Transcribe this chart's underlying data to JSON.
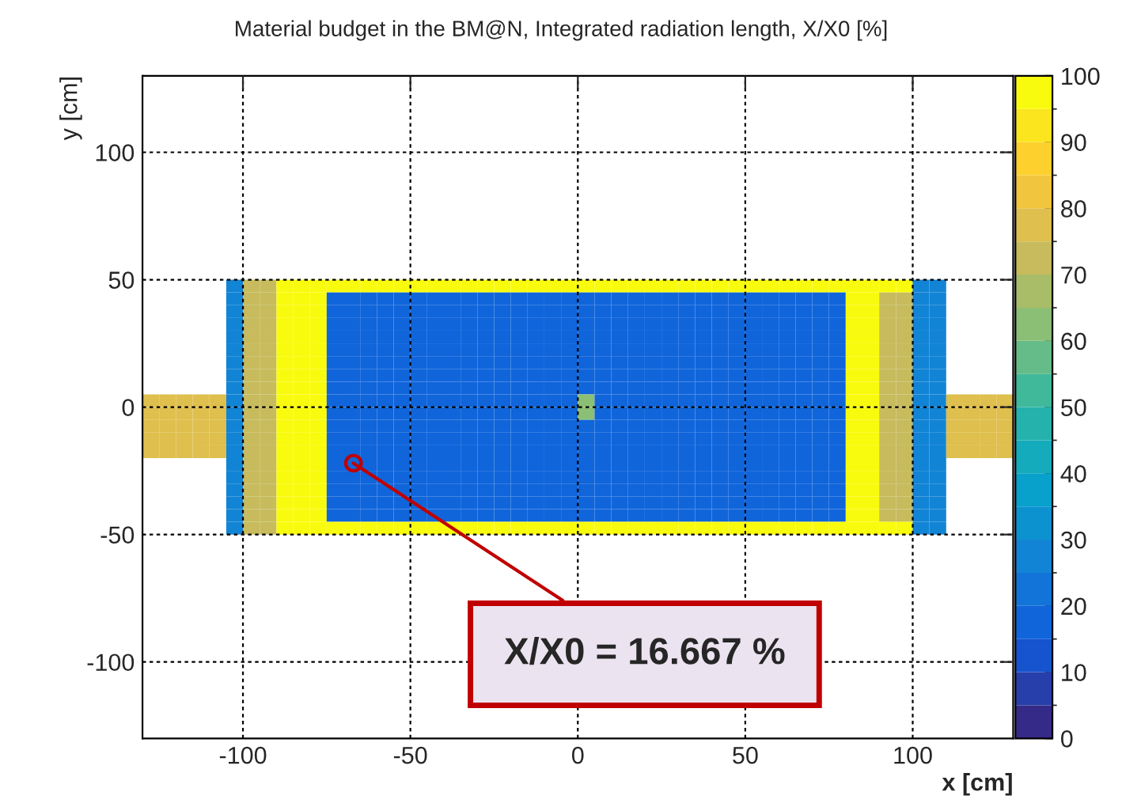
{
  "chart_data": {
    "type": "heatmap",
    "title": "Material budget in the BM@N, Integrated radiation length, X/X0 [%]",
    "xlabel": "x [cm]",
    "ylabel": "y [cm]",
    "x": [
      -127.5,
      -122.5,
      -117.5,
      -112.5,
      -107.5,
      -102.5,
      -97.5,
      -92.5,
      -87.5,
      -82.5,
      -77.5,
      -72.5,
      -67.5,
      -62.5,
      -57.5,
      -52.5,
      -47.5,
      -42.5,
      -37.5,
      -32.5,
      -27.5,
      -22.5,
      -17.5,
      -12.5,
      -7.5,
      -2.5,
      2.5,
      7.5,
      12.5,
      17.5,
      22.5,
      27.5,
      32.5,
      37.5,
      42.5,
      47.5,
      52.5,
      57.5,
      62.5,
      67.5,
      72.5,
      77.5,
      82.5,
      87.5,
      92.5,
      97.5,
      102.5,
      107.5,
      112.5,
      117.5,
      122.5,
      127.5
    ],
    "y": [
      47.5,
      42.5,
      37.5,
      32.5,
      27.5,
      22.5,
      17.5,
      12.5,
      7.5,
      2.5,
      -2.5,
      -7.5,
      -12.5,
      -17.5,
      -22.5,
      -27.5,
      -32.5,
      -37.5,
      -42.5,
      -47.5
    ],
    "cells": [
      [
        null,
        null,
        null,
        null,
        null,
        25,
        70,
        70,
        95,
        95,
        95,
        95,
        95,
        95,
        95,
        95,
        95,
        95,
        95,
        95,
        95,
        95,
        95,
        95,
        95,
        95,
        95,
        95,
        95,
        95,
        95,
        95,
        95,
        95,
        95,
        95,
        95,
        95,
        95,
        95,
        95,
        95,
        95,
        95,
        95,
        95,
        25,
        25,
        null,
        null,
        null,
        null
      ],
      [
        null,
        null,
        null,
        null,
        null,
        25,
        70,
        70,
        95,
        95,
        95,
        16.667,
        16.667,
        16.667,
        16.667,
        16.667,
        16.667,
        16.667,
        16.667,
        16.667,
        16.667,
        16.667,
        16.667,
        16.667,
        16.667,
        16.667,
        16.667,
        16.667,
        16.667,
        16.667,
        16.667,
        16.667,
        16.667,
        16.667,
        16.667,
        16.667,
        16.667,
        16.667,
        16.667,
        16.667,
        16.667,
        16.667,
        95,
        95,
        70,
        70,
        25,
        25,
        null,
        null,
        null,
        null
      ],
      [
        null,
        null,
        null,
        null,
        null,
        25,
        70,
        70,
        95,
        95,
        95,
        16.667,
        16.667,
        16.667,
        16.667,
        16.667,
        16.667,
        16.667,
        16.667,
        16.667,
        16.667,
        16.667,
        16.667,
        16.667,
        16.667,
        16.667,
        16.667,
        16.667,
        16.667,
        16.667,
        16.667,
        16.667,
        16.667,
        16.667,
        16.667,
        16.667,
        16.667,
        16.667,
        16.667,
        16.667,
        16.667,
        16.667,
        95,
        95,
        70,
        70,
        25,
        25,
        null,
        null,
        null,
        null
      ],
      [
        null,
        null,
        null,
        null,
        null,
        25,
        70,
        70,
        95,
        95,
        95,
        16.667,
        16.667,
        16.667,
        16.667,
        16.667,
        16.667,
        16.667,
        16.667,
        16.667,
        16.667,
        16.667,
        16.667,
        16.667,
        16.667,
        16.667,
        16.667,
        16.667,
        16.667,
        16.667,
        16.667,
        16.667,
        16.667,
        16.667,
        16.667,
        16.667,
        16.667,
        16.667,
        16.667,
        16.667,
        16.667,
        16.667,
        95,
        95,
        70,
        70,
        25,
        25,
        null,
        null,
        null,
        null
      ],
      [
        null,
        null,
        null,
        null,
        null,
        25,
        70,
        70,
        95,
        95,
        95,
        16.667,
        16.667,
        16.667,
        16.667,
        16.667,
        16.667,
        16.667,
        16.667,
        16.667,
        16.667,
        16.667,
        16.667,
        16.667,
        16.667,
        16.667,
        16.667,
        16.667,
        16.667,
        16.667,
        16.667,
        16.667,
        16.667,
        16.667,
        16.667,
        16.667,
        16.667,
        16.667,
        16.667,
        16.667,
        16.667,
        16.667,
        95,
        95,
        70,
        70,
        25,
        25,
        null,
        null,
        null,
        null
      ],
      [
        null,
        null,
        null,
        null,
        null,
        25,
        70,
        70,
        95,
        95,
        95,
        16.667,
        16.667,
        16.667,
        16.667,
        16.667,
        16.667,
        16.667,
        16.667,
        16.667,
        16.667,
        16.667,
        16.667,
        16.667,
        16.667,
        16.667,
        16.667,
        16.667,
        16.667,
        16.667,
        16.667,
        16.667,
        16.667,
        16.667,
        16.667,
        16.667,
        16.667,
        16.667,
        16.667,
        16.667,
        16.667,
        16.667,
        95,
        95,
        70,
        70,
        25,
        25,
        null,
        null,
        null,
        null
      ],
      [
        null,
        null,
        null,
        null,
        null,
        25,
        70,
        70,
        95,
        95,
        95,
        16.667,
        16.667,
        16.667,
        16.667,
        16.667,
        16.667,
        16.667,
        16.667,
        16.667,
        16.667,
        16.667,
        16.667,
        16.667,
        16.667,
        16.667,
        16.667,
        16.667,
        16.667,
        16.667,
        16.667,
        16.667,
        16.667,
        16.667,
        16.667,
        16.667,
        16.667,
        16.667,
        16.667,
        16.667,
        16.667,
        16.667,
        95,
        95,
        70,
        70,
        25,
        25,
        null,
        null,
        null,
        null
      ],
      [
        null,
        null,
        null,
        null,
        null,
        25,
        70,
        70,
        95,
        95,
        95,
        16.667,
        16.667,
        16.667,
        16.667,
        16.667,
        16.667,
        16.667,
        16.667,
        16.667,
        16.667,
        16.667,
        16.667,
        16.667,
        16.667,
        16.667,
        16.667,
        16.667,
        16.667,
        16.667,
        16.667,
        16.667,
        16.667,
        16.667,
        16.667,
        16.667,
        16.667,
        16.667,
        16.667,
        16.667,
        16.667,
        16.667,
        95,
        95,
        70,
        70,
        25,
        25,
        null,
        null,
        null,
        null
      ],
      [
        null,
        null,
        null,
        null,
        null,
        25,
        70,
        70,
        95,
        95,
        95,
        16.667,
        16.667,
        16.667,
        16.667,
        16.667,
        16.667,
        16.667,
        16.667,
        16.667,
        16.667,
        16.667,
        16.667,
        16.667,
        16.667,
        16.667,
        16.667,
        16.667,
        16.667,
        16.667,
        16.667,
        16.667,
        16.667,
        16.667,
        16.667,
        16.667,
        16.667,
        16.667,
        16.667,
        16.667,
        16.667,
        16.667,
        95,
        95,
        70,
        70,
        25,
        25,
        null,
        null,
        null,
        null
      ],
      [
        75,
        75,
        75,
        75,
        75,
        25,
        70,
        70,
        95,
        95,
        95,
        16.667,
        16.667,
        16.667,
        16.667,
        16.667,
        16.667,
        16.667,
        16.667,
        16.667,
        16.667,
        16.667,
        16.667,
        16.667,
        16.667,
        16.667,
        60,
        16.667,
        16.667,
        16.667,
        16.667,
        16.667,
        16.667,
        16.667,
        16.667,
        16.667,
        16.667,
        16.667,
        16.667,
        16.667,
        16.667,
        16.667,
        95,
        95,
        70,
        70,
        25,
        25,
        75,
        75,
        75,
        75
      ],
      [
        75,
        75,
        75,
        75,
        75,
        25,
        70,
        70,
        95,
        95,
        95,
        16.667,
        16.667,
        16.667,
        16.667,
        16.667,
        16.667,
        16.667,
        16.667,
        16.667,
        16.667,
        16.667,
        16.667,
        16.667,
        16.667,
        16.667,
        60,
        16.667,
        16.667,
        16.667,
        16.667,
        16.667,
        16.667,
        16.667,
        16.667,
        16.667,
        16.667,
        16.667,
        16.667,
        16.667,
        16.667,
        16.667,
        95,
        95,
        70,
        70,
        25,
        25,
        75,
        75,
        75,
        75
      ],
      [
        75,
        75,
        75,
        75,
        75,
        25,
        70,
        70,
        95,
        95,
        95,
        16.667,
        16.667,
        16.667,
        16.667,
        16.667,
        16.667,
        16.667,
        16.667,
        16.667,
        16.667,
        16.667,
        16.667,
        16.667,
        16.667,
        16.667,
        16.667,
        16.667,
        16.667,
        16.667,
        16.667,
        16.667,
        16.667,
        16.667,
        16.667,
        16.667,
        16.667,
        16.667,
        16.667,
        16.667,
        16.667,
        16.667,
        95,
        95,
        70,
        70,
        25,
        25,
        75,
        75,
        75,
        75
      ],
      [
        75,
        75,
        75,
        75,
        75,
        25,
        70,
        70,
        95,
        95,
        95,
        16.667,
        16.667,
        16.667,
        16.667,
        16.667,
        16.667,
        16.667,
        16.667,
        16.667,
        16.667,
        16.667,
        16.667,
        16.667,
        16.667,
        16.667,
        16.667,
        16.667,
        16.667,
        16.667,
        16.667,
        16.667,
        16.667,
        16.667,
        16.667,
        16.667,
        16.667,
        16.667,
        16.667,
        16.667,
        16.667,
        16.667,
        95,
        95,
        70,
        70,
        25,
        25,
        75,
        75,
        75,
        75
      ],
      [
        75,
        75,
        75,
        75,
        75,
        25,
        70,
        70,
        95,
        95,
        95,
        16.667,
        16.667,
        16.667,
        16.667,
        16.667,
        16.667,
        16.667,
        16.667,
        16.667,
        16.667,
        16.667,
        16.667,
        16.667,
        16.667,
        16.667,
        16.667,
        16.667,
        16.667,
        16.667,
        16.667,
        16.667,
        16.667,
        16.667,
        16.667,
        16.667,
        16.667,
        16.667,
        16.667,
        16.667,
        16.667,
        16.667,
        95,
        95,
        70,
        70,
        25,
        25,
        75,
        75,
        75,
        75
      ],
      [
        null,
        null,
        null,
        null,
        null,
        25,
        70,
        70,
        95,
        95,
        95,
        16.667,
        16.667,
        16.667,
        16.667,
        16.667,
        16.667,
        16.667,
        16.667,
        16.667,
        16.667,
        16.667,
        16.667,
        16.667,
        16.667,
        16.667,
        16.667,
        16.667,
        16.667,
        16.667,
        16.667,
        16.667,
        16.667,
        16.667,
        16.667,
        16.667,
        16.667,
        16.667,
        16.667,
        16.667,
        16.667,
        16.667,
        95,
        95,
        70,
        70,
        25,
        25,
        null,
        null,
        null,
        null
      ],
      [
        null,
        null,
        null,
        null,
        null,
        25,
        70,
        70,
        95,
        95,
        95,
        16.667,
        16.667,
        16.667,
        16.667,
        16.667,
        16.667,
        16.667,
        16.667,
        16.667,
        16.667,
        16.667,
        16.667,
        16.667,
        16.667,
        16.667,
        16.667,
        16.667,
        16.667,
        16.667,
        16.667,
        16.667,
        16.667,
        16.667,
        16.667,
        16.667,
        16.667,
        16.667,
        16.667,
        16.667,
        16.667,
        16.667,
        95,
        95,
        70,
        70,
        25,
        25,
        null,
        null,
        null,
        null
      ],
      [
        null,
        null,
        null,
        null,
        null,
        25,
        70,
        70,
        95,
        95,
        95,
        16.667,
        16.667,
        16.667,
        16.667,
        16.667,
        16.667,
        16.667,
        16.667,
        16.667,
        16.667,
        16.667,
        16.667,
        16.667,
        16.667,
        16.667,
        16.667,
        16.667,
        16.667,
        16.667,
        16.667,
        16.667,
        16.667,
        16.667,
        16.667,
        16.667,
        16.667,
        16.667,
        16.667,
        16.667,
        16.667,
        16.667,
        95,
        95,
        70,
        70,
        25,
        25,
        null,
        null,
        null,
        null
      ],
      [
        null,
        null,
        null,
        null,
        null,
        25,
        70,
        70,
        95,
        95,
        95,
        16.667,
        16.667,
        16.667,
        16.667,
        16.667,
        16.667,
        16.667,
        16.667,
        16.667,
        16.667,
        16.667,
        16.667,
        16.667,
        16.667,
        16.667,
        16.667,
        16.667,
        16.667,
        16.667,
        16.667,
        16.667,
        16.667,
        16.667,
        16.667,
        16.667,
        16.667,
        16.667,
        16.667,
        16.667,
        16.667,
        16.667,
        95,
        95,
        70,
        70,
        25,
        25,
        null,
        null,
        null,
        null
      ],
      [
        null,
        null,
        null,
        null,
        null,
        25,
        70,
        70,
        95,
        95,
        95,
        16.667,
        16.667,
        16.667,
        16.667,
        16.667,
        16.667,
        16.667,
        16.667,
        16.667,
        16.667,
        16.667,
        16.667,
        16.667,
        16.667,
        16.667,
        16.667,
        16.667,
        16.667,
        16.667,
        16.667,
        16.667,
        16.667,
        16.667,
        16.667,
        16.667,
        16.667,
        16.667,
        16.667,
        16.667,
        16.667,
        16.667,
        95,
        95,
        70,
        70,
        25,
        25,
        null,
        null,
        null,
        null
      ],
      [
        null,
        null,
        null,
        null,
        null,
        25,
        70,
        70,
        95,
        95,
        95,
        95,
        95,
        95,
        95,
        95,
        95,
        95,
        95,
        95,
        95,
        95,
        95,
        95,
        95,
        95,
        95,
        95,
        95,
        95,
        95,
        95,
        95,
        95,
        95,
        95,
        95,
        95,
        95,
        95,
        95,
        95,
        95,
        95,
        95,
        95,
        25,
        25,
        null,
        null,
        null,
        null
      ]
    ],
    "xlim": [
      -130,
      130
    ],
    "xticks": [
      -100,
      -50,
      0,
      50,
      100
    ],
    "ylim": [
      -130,
      130
    ],
    "yticks": [
      -100,
      -50,
      0,
      50,
      100
    ],
    "clim": [
      0,
      100
    ],
    "cticks": [
      0,
      10,
      20,
      30,
      40,
      50,
      60,
      70,
      80,
      90,
      100
    ],
    "grid": true,
    "annotations": [
      {
        "text": "X/X0 = 16.667 %",
        "x": -67,
        "y": -22
      }
    ]
  }
}
